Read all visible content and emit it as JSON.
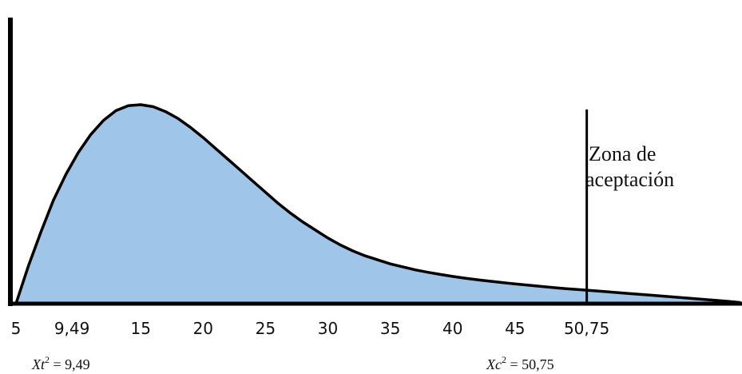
{
  "chart_data": {
    "type": "area",
    "title": "",
    "xlabel": "",
    "ylabel": "",
    "xlim": [
      5,
      63
    ],
    "curve": {
      "name": "",
      "x": [
        5,
        6,
        7,
        8,
        9,
        10,
        11,
        12,
        13,
        14,
        15,
        16,
        17,
        18,
        19,
        20,
        21,
        22,
        23,
        24,
        25,
        26,
        27,
        28,
        29,
        30,
        31,
        32,
        33,
        34,
        35,
        36,
        37,
        38,
        39,
        40,
        41,
        42,
        43,
        44,
        45,
        46,
        47,
        48,
        49,
        50,
        50.75,
        52,
        54,
        56,
        58,
        60,
        62,
        63
      ],
      "y": [
        0,
        0.19,
        0.36,
        0.52,
        0.65,
        0.76,
        0.85,
        0.92,
        0.97,
        0.995,
        1.0,
        0.99,
        0.965,
        0.93,
        0.885,
        0.835,
        0.78,
        0.725,
        0.67,
        0.615,
        0.56,
        0.505,
        0.455,
        0.41,
        0.37,
        0.33,
        0.295,
        0.265,
        0.24,
        0.22,
        0.2,
        0.185,
        0.17,
        0.158,
        0.147,
        0.137,
        0.128,
        0.12,
        0.113,
        0.106,
        0.099,
        0.093,
        0.087,
        0.081,
        0.076,
        0.071,
        0.068,
        0.062,
        0.052,
        0.042,
        0.032,
        0.022,
        0.012,
        0.006
      ],
      "fill": "#9fc5e8",
      "stroke": "#000000"
    },
    "tick_labels": [
      {
        "value": 5,
        "label": "5"
      },
      {
        "value": 9.49,
        "label": "9,49"
      },
      {
        "value": 15,
        "label": "15"
      },
      {
        "value": 20,
        "label": "20"
      },
      {
        "value": 25,
        "label": "25"
      },
      {
        "value": 30,
        "label": "30"
      },
      {
        "value": 35,
        "label": "35"
      },
      {
        "value": 40,
        "label": "40"
      },
      {
        "value": 45,
        "label": "45"
      },
      {
        "value": 50.75,
        "label": "50,75"
      }
    ],
    "critical_line": {
      "x": 50.75
    },
    "annotation": {
      "lines": [
        "Zona de",
        "aceptación"
      ]
    },
    "formulas": {
      "left": {
        "base": "Xt",
        "sup": "2",
        "rest": " = 9,49"
      },
      "right": {
        "base": "Xc",
        "sup": "2",
        "rest": " = 50,75"
      }
    },
    "grid": false,
    "legend": "none"
  }
}
